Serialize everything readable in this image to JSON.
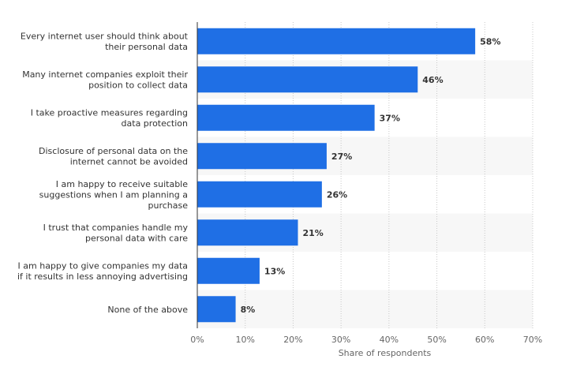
{
  "chart_data": {
    "type": "bar",
    "orientation": "horizontal",
    "categories": [
      [
        "Every internet user should think about",
        "their personal data"
      ],
      [
        "Many internet companies exploit their",
        "position to collect data"
      ],
      [
        "I take proactive measures regarding",
        "data protection"
      ],
      [
        "Disclosure of personal data on the",
        "internet cannot be avoided"
      ],
      [
        "I am happy to receive suitable",
        "suggestions when I am planning a",
        "purchase"
      ],
      [
        "I trust that companies handle my",
        "personal data with care"
      ],
      [
        "I am happy to give companies my data",
        "if it results in less annoying advertising"
      ],
      [
        "None of the above"
      ]
    ],
    "values": [
      58,
      46,
      37,
      27,
      26,
      21,
      13,
      8
    ],
    "value_labels": [
      "58%",
      "46%",
      "37%",
      "27%",
      "26%",
      "21%",
      "13%",
      "8%"
    ],
    "xlabel": "Share of respondents",
    "ylabel": "",
    "title": "",
    "xlim": [
      0,
      70
    ],
    "xticks": [
      0,
      10,
      20,
      30,
      40,
      50,
      60,
      70
    ],
    "xtick_labels": [
      "0%",
      "10%",
      "20%",
      "30%",
      "40%",
      "50%",
      "60%",
      "70%"
    ],
    "bar_color": "#1f6fe5",
    "band_color": "#f7f7f7",
    "grid": true
  }
}
